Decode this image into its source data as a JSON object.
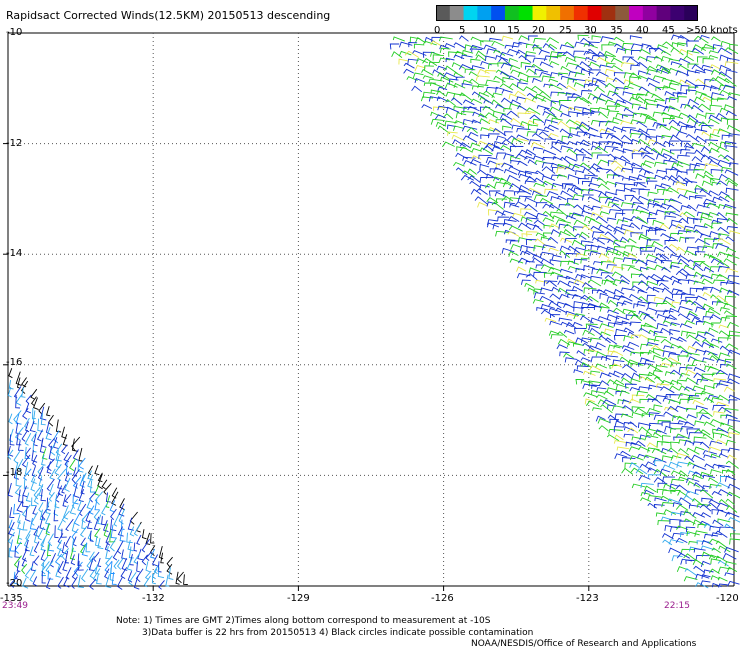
{
  "title": "Rapidsact Corrected Winds(12.5KM) 20150513 descending",
  "legend": {
    "labels": [
      "0",
      "5",
      "10",
      "15",
      "20",
      "25",
      "30",
      "35",
      "40",
      "45",
      ">50 knots"
    ],
    "colors": [
      "#5a5a5a",
      "#8c8c8c",
      "#00d4f0",
      "#00a0f0",
      "#0050f0",
      "#10c020",
      "#00e000",
      "#f0f000",
      "#f0c000",
      "#f07000",
      "#f03000",
      "#e00000",
      "#a03010",
      "#8c5a3c",
      "#c000c0",
      "#9000a0",
      "#60007c",
      "#3c0070",
      "#2a005a"
    ]
  },
  "map": {
    "lat_labels": [
      "-10",
      "-12",
      "-14",
      "-16",
      "-18",
      "-20"
    ],
    "lon_labels": [
      "-135",
      "-132",
      "-129",
      "-126",
      "-123",
      "-120"
    ],
    "lon_range": [
      -135,
      -120
    ],
    "lat_range": [
      -20,
      -10
    ],
    "time_left": "23:49",
    "time_right": "22:15"
  },
  "notes": {
    "line1": "Note: 1) Times are GMT 2)Times along bottom correspond to measurement at -10S",
    "line2": "3)Data buffer is 22 hrs from 20150513 4) Black circles indicate possible contamination",
    "line3": "NOAA/NESDIS/Office of Research and Applications"
  },
  "wind_colors": {
    "light_blue": "#1e90ff",
    "blue": "#1030d0",
    "green": "#22cc22",
    "cyan": "#33aaee",
    "yellow": "#e8e84a",
    "black": "#000000"
  }
}
